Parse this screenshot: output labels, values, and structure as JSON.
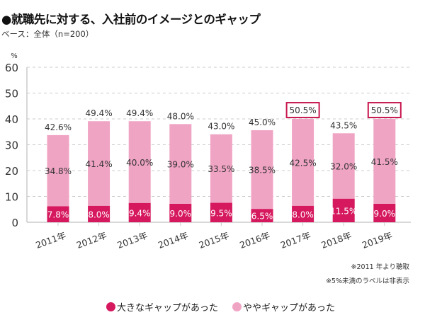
{
  "title": "●就職先に対する、入社前のイメージとのギャップ",
  "subtitle": "ベース：全体（n=200）",
  "notes": [
    "※2011 年より聴取",
    "※5%未満のラベルは非表示"
  ],
  "colors": {
    "large_gap": "#d6185e",
    "some_gap": "#f0a4c4",
    "highlight_border": "#c8184f",
    "grid": "#cccccc",
    "axis": "#cccccc"
  },
  "chart_data": {
    "type": "bar",
    "stacked": true,
    "title": "就職先に対する、入社前のイメージとのギャップ",
    "xlabel": "",
    "ylabel": "%",
    "ylim": [
      0,
      60
    ],
    "yticks": [
      0,
      10,
      20,
      30,
      40,
      50,
      60
    ],
    "grid": true,
    "legend_position": "bottom",
    "categories": [
      "2011年",
      "2012年",
      "2013年",
      "2014年",
      "2015年",
      "2016年",
      "2017年",
      "2018年",
      "2019年"
    ],
    "series": [
      {
        "name": "大きなギャップがあった",
        "values": [
          7.8,
          8.0,
          9.4,
          9.0,
          9.5,
          6.5,
          8.0,
          11.5,
          9.0
        ],
        "labels": [
          "7.8%",
          "8.0%",
          "9.4%",
          "9.0%",
          "9.5%",
          "6.5%",
          "8.0%",
          "11.5%",
          "9.0%"
        ]
      },
      {
        "name": "ややギャップがあった",
        "values": [
          34.8,
          41.4,
          40.0,
          39.0,
          33.5,
          38.5,
          42.5,
          32.0,
          41.5
        ],
        "labels": [
          "34.8%",
          "41.4%",
          "40.0%",
          "39.0%",
          "33.5%",
          "38.5%",
          "42.5%",
          "32.0%",
          "41.5%"
        ]
      }
    ],
    "totals": [
      42.6,
      49.4,
      49.4,
      48.0,
      43.0,
      45.0,
      50.5,
      43.5,
      50.5
    ],
    "total_labels": [
      "42.6%",
      "49.4%",
      "49.4%",
      "48.0%",
      "43.0%",
      "45.0%",
      "50.5%",
      "43.5%",
      "50.5%"
    ],
    "highlighted_totals": [
      "2017年",
      "2019年"
    ]
  },
  "legend": [
    {
      "label": "大きなギャップがあった"
    },
    {
      "label": "ややギャップがあった"
    }
  ]
}
